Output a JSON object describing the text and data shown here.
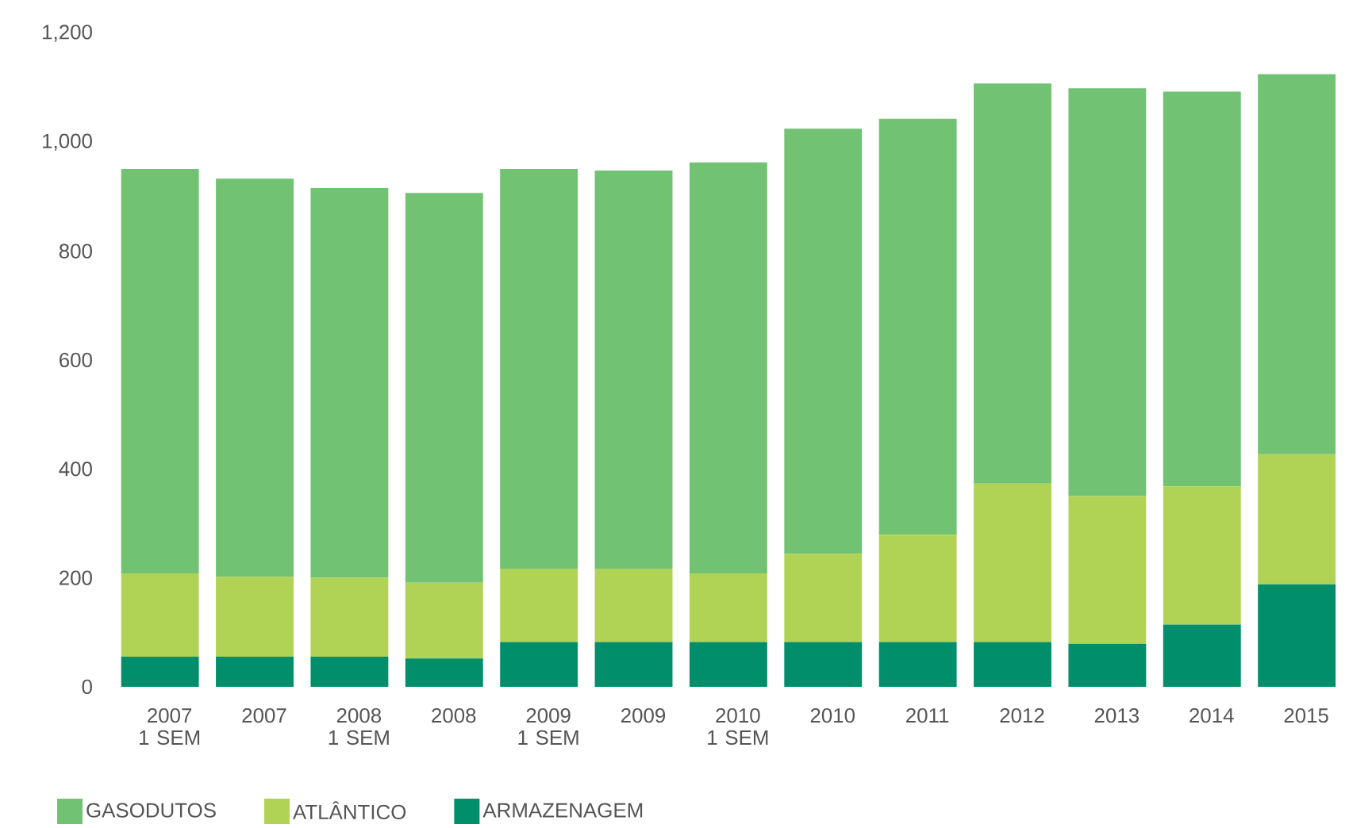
{
  "chart_data": {
    "type": "bar",
    "stacked": true,
    "categories": [
      "2007 1 SEM",
      "2007",
      "2008 1 SEM",
      "2008",
      "2009 1 SEM",
      "2009",
      "2010 1 SEM",
      "2010",
      "2011",
      "2012",
      "2013",
      "2014",
      "2015"
    ],
    "series": [
      {
        "name": "ARMAZENAGEM",
        "color": "#008f6a",
        "values": [
          55,
          55,
          55,
          52,
          82,
          82,
          82,
          82,
          82,
          82,
          79,
          114,
          188
        ]
      },
      {
        "name": "ATLÂNTICO",
        "color": "#b1d355",
        "values": [
          153,
          147,
          145,
          139,
          135,
          135,
          126,
          162,
          197,
          291,
          271,
          254,
          239
        ]
      },
      {
        "name": "GASODUTOS",
        "color": "#72c274",
        "values": [
          743,
          731,
          716,
          716,
          734,
          731,
          755,
          781,
          764,
          735,
          749,
          725,
          698
        ]
      }
    ],
    "ylim": [
      0,
      1200
    ],
    "yticks": [
      0,
      200,
      400,
      600,
      800,
      {
        "value": 1000,
        "label": "1,000"
      },
      {
        "value": 1200,
        "label": "1,200"
      }
    ],
    "grid": false,
    "legend": "bottom"
  }
}
